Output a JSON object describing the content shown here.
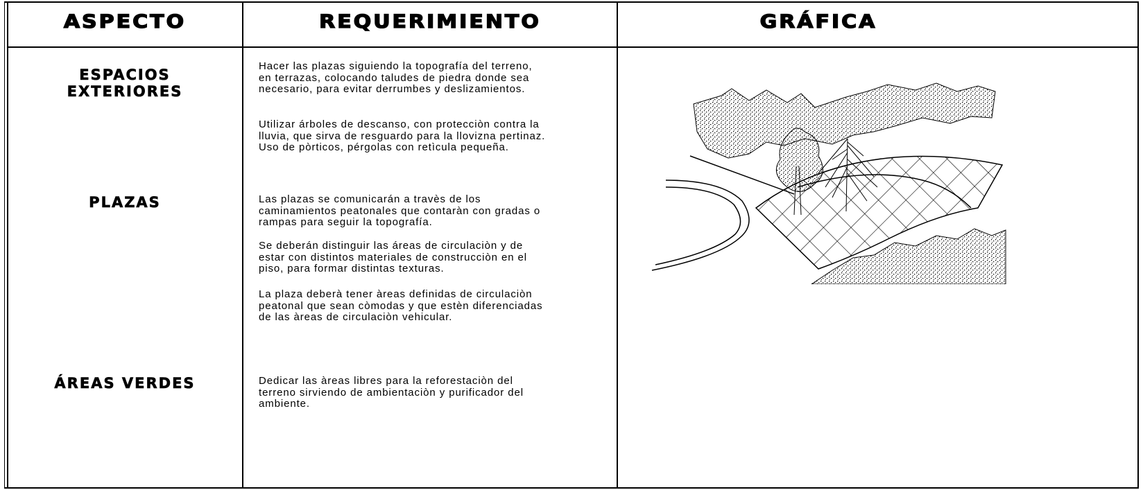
{
  "header": {
    "aspect": "ASPECTO",
    "requirement": "REQUERIMIENTO",
    "graphic": "GRÁFICA"
  },
  "aspects": [
    {
      "lines": [
        "ESPACIOS",
        "EXTERIORES"
      ]
    },
    {
      "lines": [
        "PLAZAS"
      ]
    },
    {
      "lines": [
        "ÁREAS VERDES"
      ]
    }
  ],
  "requirements": [
    {
      "lines": [
        "Hacer las plazas siguiendo la topografía del terreno,",
        "en terrazas, colocando taludes de piedra donde sea",
        "necesario, para evitar derrumbes y deslizamientos."
      ]
    },
    {
      "lines": [
        "Utilizar árboles de descanso, con protecciòn contra la",
        "lluvia, que sirva de resguardo para la llovizna pertinaz.",
        "Uso de pòrticos, pérgolas con retìcula pequeña."
      ]
    },
    {
      "lines": [
        "Las plazas se comunicarán a travès de los",
        "caminamientos peatonales que contaràn con gradas o",
        "rampas para seguir la topografía."
      ]
    },
    {
      "lines": [
        "Se deberán distinguir las áreas de circulaciòn y de",
        "estar con distintos materiales de construcciòn en el",
        "piso, para formar distintas texturas."
      ]
    },
    {
      "lines": [
        "La plaza deberà tener àreas definidas de circulaciòn",
        "peatonal que sean còmodas y que estèn diferenciadas",
        "de las àreas de circulaciòn vehicular."
      ]
    },
    {
      "lines": [
        "Dedicar las àreas libres para la reforestaciòn del",
        "terreno sirviendo de ambientaciòn y purificador del",
        "ambiente."
      ]
    }
  ]
}
